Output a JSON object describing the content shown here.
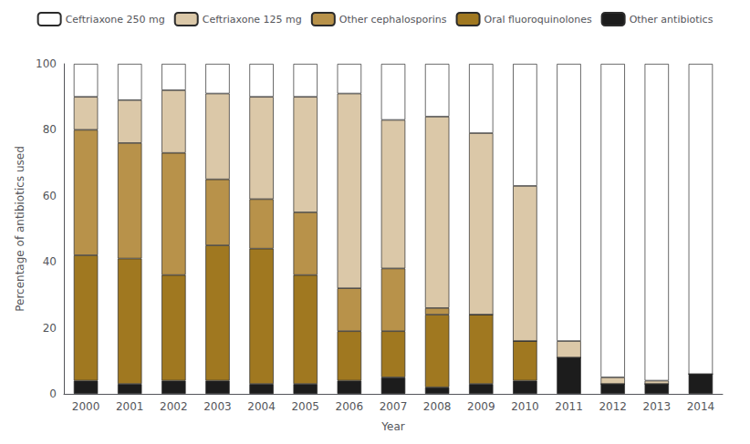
{
  "chart_data": {
    "type": "bar",
    "stacked": true,
    "xlabel": "Year",
    "ylabel": "Percentage of antibiotics used",
    "categories": [
      "2000",
      "2001",
      "2002",
      "2003",
      "2004",
      "2005",
      "2006",
      "2007",
      "2008",
      "2009",
      "2010",
      "2011",
      "2012",
      "2013",
      "2014"
    ],
    "series": [
      {
        "name": "Other antibiotics",
        "color": "#1C1C1C",
        "values": [
          4,
          3,
          4,
          4,
          3,
          3,
          4,
          5,
          2,
          3,
          4,
          11,
          3,
          3,
          6
        ]
      },
      {
        "name": "Oral fluoroquinolones",
        "color": "#A07820",
        "values": [
          38,
          38,
          32,
          41,
          41,
          33,
          15,
          14,
          22,
          21,
          12,
          0,
          0,
          0,
          0
        ]
      },
      {
        "name": "Other cephalosporins",
        "color": "#B8924A",
        "values": [
          38,
          35,
          37,
          20,
          15,
          19,
          13,
          19,
          2,
          0,
          0,
          0,
          0,
          0,
          0
        ]
      },
      {
        "name": "Ceftriaxone 125 mg",
        "color": "#DBC8A8",
        "values": [
          10,
          13,
          19,
          26,
          31,
          35,
          59,
          45,
          58,
          55,
          47,
          5,
          2,
          1,
          0
        ]
      },
      {
        "name": "Ceftriaxone 250 mg",
        "color": "#FFFFFF",
        "values": [
          10,
          11,
          8,
          9,
          10,
          10,
          9,
          17,
          16,
          21,
          37,
          84,
          95,
          96,
          94
        ]
      }
    ],
    "ylim": [
      0,
      100
    ],
    "yticks": [
      0,
      20,
      40,
      60,
      80,
      100
    ],
    "grid": false,
    "legend": "top"
  }
}
